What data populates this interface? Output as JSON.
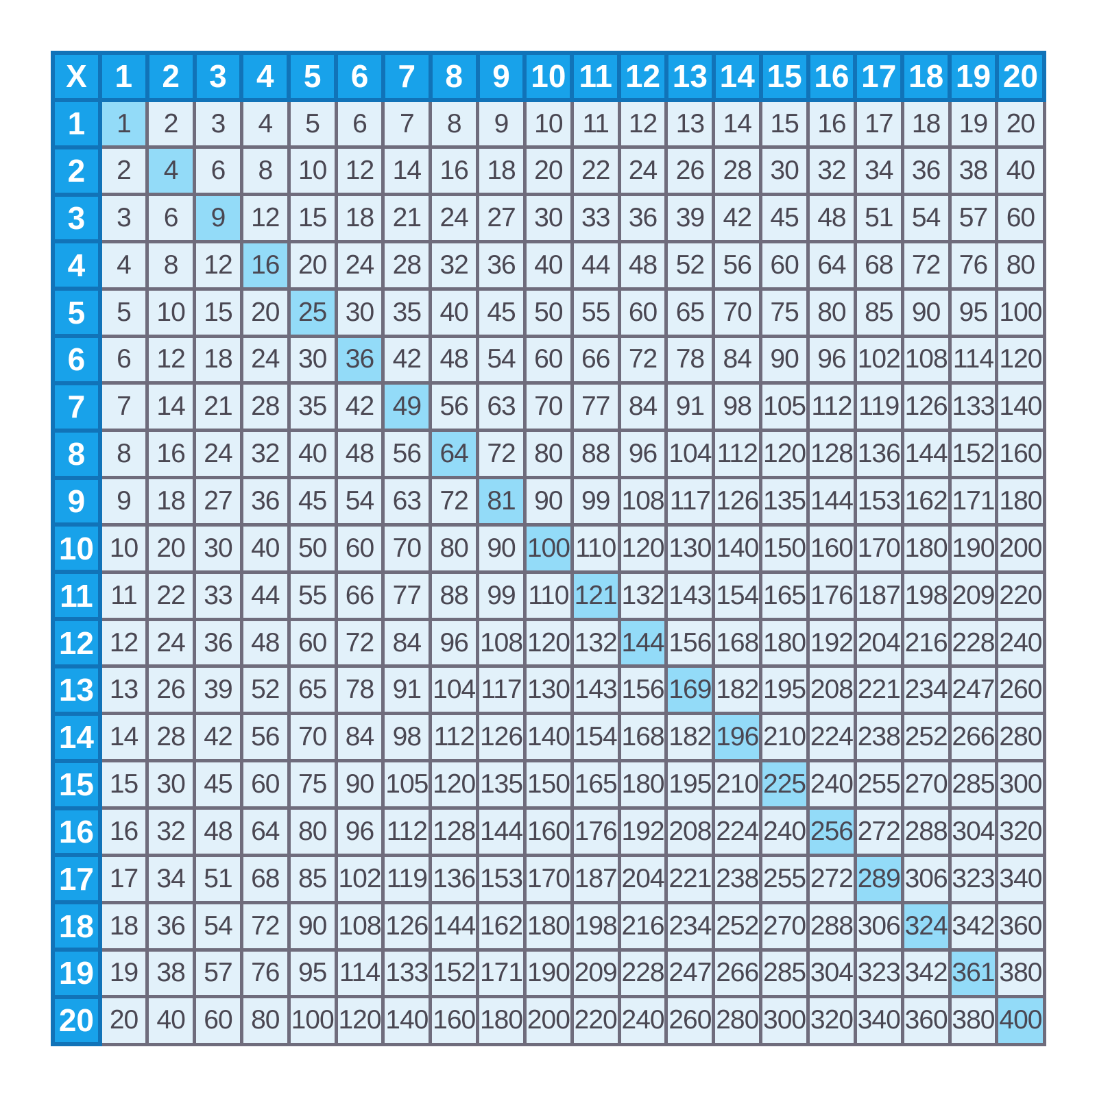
{
  "colors": {
    "page_bg": "#FFFFFF",
    "header_bg": "#18A2EA",
    "header_border": "#1173B8",
    "header_text": "#FFFFFF",
    "cell_bg": "#E2F1FA",
    "cell_text": "#4A4752",
    "grid_border": "#6F6C7C",
    "highlight_bg": "#93DBF8"
  },
  "chart_data": {
    "type": "table",
    "corner_label": "X",
    "col_headers": [
      "1",
      "2",
      "3",
      "4",
      "5",
      "6",
      "7",
      "8",
      "9",
      "10",
      "11",
      "12",
      "13",
      "14",
      "15",
      "16",
      "17",
      "18",
      "19",
      "20"
    ],
    "row_headers": [
      "1",
      "2",
      "3",
      "4",
      "5",
      "6",
      "7",
      "8",
      "9",
      "10",
      "11",
      "12",
      "13",
      "14",
      "15",
      "16",
      "17",
      "18",
      "19",
      "20"
    ],
    "matrix": [
      [
        1,
        2,
        3,
        4,
        5,
        6,
        7,
        8,
        9,
        10,
        11,
        12,
        13,
        14,
        15,
        16,
        17,
        18,
        19,
        20
      ],
      [
        2,
        4,
        6,
        8,
        10,
        12,
        14,
        16,
        18,
        20,
        22,
        24,
        26,
        28,
        30,
        32,
        34,
        36,
        38,
        40
      ],
      [
        3,
        6,
        9,
        12,
        15,
        18,
        21,
        24,
        27,
        30,
        33,
        36,
        39,
        42,
        45,
        48,
        51,
        54,
        57,
        60
      ],
      [
        4,
        8,
        12,
        16,
        20,
        24,
        28,
        32,
        36,
        40,
        44,
        48,
        52,
        56,
        60,
        64,
        68,
        72,
        76,
        80
      ],
      [
        5,
        10,
        15,
        20,
        25,
        30,
        35,
        40,
        45,
        50,
        55,
        60,
        65,
        70,
        75,
        80,
        85,
        90,
        95,
        100
      ],
      [
        6,
        12,
        18,
        24,
        30,
        36,
        42,
        48,
        54,
        60,
        66,
        72,
        78,
        84,
        90,
        96,
        102,
        108,
        114,
        120
      ],
      [
        7,
        14,
        21,
        28,
        35,
        42,
        49,
        56,
        63,
        70,
        77,
        84,
        91,
        98,
        105,
        112,
        119,
        126,
        133,
        140
      ],
      [
        8,
        16,
        24,
        32,
        40,
        48,
        56,
        64,
        72,
        80,
        88,
        96,
        104,
        112,
        120,
        128,
        136,
        144,
        152,
        160
      ],
      [
        9,
        18,
        27,
        36,
        45,
        54,
        63,
        72,
        81,
        90,
        99,
        108,
        117,
        126,
        135,
        144,
        153,
        162,
        171,
        180
      ],
      [
        10,
        20,
        30,
        40,
        50,
        60,
        70,
        80,
        90,
        100,
        110,
        120,
        130,
        140,
        150,
        160,
        170,
        180,
        190,
        200
      ],
      [
        11,
        22,
        33,
        44,
        55,
        66,
        77,
        88,
        99,
        110,
        121,
        132,
        143,
        154,
        165,
        176,
        187,
        198,
        209,
        220
      ],
      [
        12,
        24,
        36,
        48,
        60,
        72,
        84,
        96,
        108,
        120,
        132,
        144,
        156,
        168,
        180,
        192,
        204,
        216,
        228,
        240
      ],
      [
        13,
        26,
        39,
        52,
        65,
        78,
        91,
        104,
        117,
        130,
        143,
        156,
        169,
        182,
        195,
        208,
        221,
        234,
        247,
        260
      ],
      [
        14,
        28,
        42,
        56,
        70,
        84,
        98,
        112,
        126,
        140,
        154,
        168,
        182,
        196,
        210,
        224,
        238,
        252,
        266,
        280
      ],
      [
        15,
        30,
        45,
        60,
        75,
        90,
        105,
        120,
        135,
        150,
        165,
        180,
        195,
        210,
        225,
        240,
        255,
        270,
        285,
        300
      ],
      [
        16,
        32,
        48,
        64,
        80,
        96,
        112,
        128,
        144,
        160,
        176,
        192,
        208,
        224,
        240,
        256,
        272,
        288,
        304,
        320
      ],
      [
        17,
        34,
        51,
        68,
        85,
        102,
        119,
        136,
        153,
        170,
        187,
        204,
        221,
        238,
        255,
        272,
        289,
        306,
        323,
        340
      ],
      [
        18,
        36,
        54,
        72,
        90,
        108,
        126,
        144,
        162,
        180,
        198,
        216,
        234,
        252,
        270,
        288,
        306,
        324,
        342,
        360
      ],
      [
        19,
        38,
        57,
        76,
        95,
        114,
        133,
        152,
        171,
        190,
        209,
        228,
        247,
        266,
        285,
        304,
        323,
        342,
        361,
        380
      ],
      [
        20,
        40,
        60,
        80,
        100,
        120,
        140,
        160,
        180,
        200,
        220,
        240,
        260,
        280,
        300,
        320,
        340,
        360,
        380,
        400
      ]
    ],
    "highlight_rule": "diagonal-perfect-squares"
  }
}
